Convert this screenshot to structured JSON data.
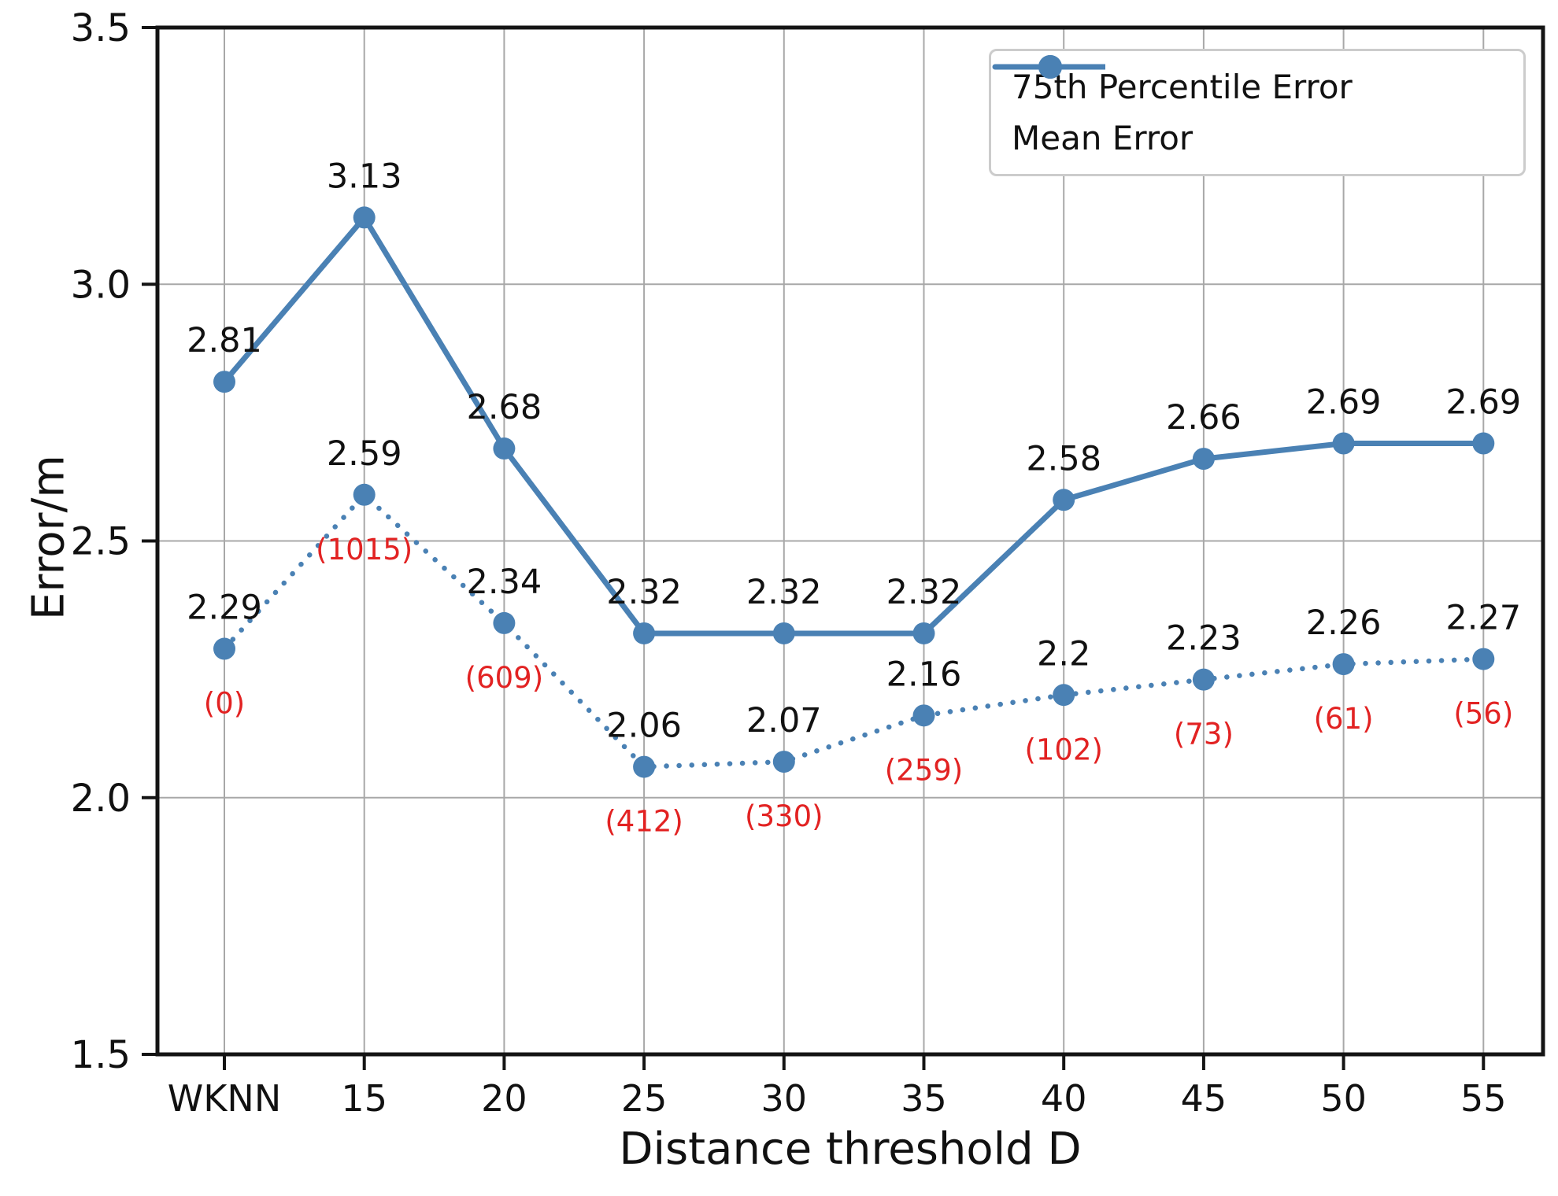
{
  "chart_data": {
    "type": "line",
    "title": "",
    "xlabel": "Distance threshold D",
    "ylabel": "Error/m",
    "categories": [
      "WKNN",
      "15",
      "20",
      "25",
      "30",
      "35",
      "40",
      "45",
      "50",
      "55"
    ],
    "ylim": [
      1.5,
      3.5
    ],
    "yticks": [
      1.5,
      2.0,
      2.5,
      3.0,
      3.5
    ],
    "ytick_labels": [
      "1.5",
      "2.0",
      "2.5",
      "3.0",
      "3.5"
    ],
    "grid": true,
    "legend_position": "upper right",
    "series_color": "#4a81b4",
    "annotation_color": "#e22222",
    "series": [
      {
        "name": "75th Percentile Error",
        "style": "solid",
        "values": [
          2.81,
          3.13,
          2.68,
          2.32,
          2.32,
          2.32,
          2.58,
          2.66,
          2.69,
          2.69
        ],
        "labels": [
          "2.81",
          "3.13",
          "2.68",
          "2.32",
          "2.32",
          "2.32",
          "2.58",
          "2.66",
          "2.69",
          "2.69"
        ]
      },
      {
        "name": "Mean Error",
        "style": "dotted",
        "values": [
          2.29,
          2.59,
          2.34,
          2.06,
          2.07,
          2.16,
          2.2,
          2.23,
          2.26,
          2.27
        ],
        "labels": [
          "2.29",
          "2.59",
          "2.34",
          "2.06",
          "2.07",
          "2.16",
          "2.2",
          "2.23",
          "2.26",
          "2.27"
        ],
        "annotations": [
          "(0)",
          "(1015)",
          "(609)",
          "(412)",
          "(330)",
          "(259)",
          "(102)",
          "(73)",
          "(61)",
          "(56)"
        ]
      }
    ]
  },
  "legend": {
    "items": [
      {
        "label": "75th Percentile Error",
        "style": "solid"
      },
      {
        "label": "Mean Error",
        "style": "dotted"
      }
    ]
  }
}
